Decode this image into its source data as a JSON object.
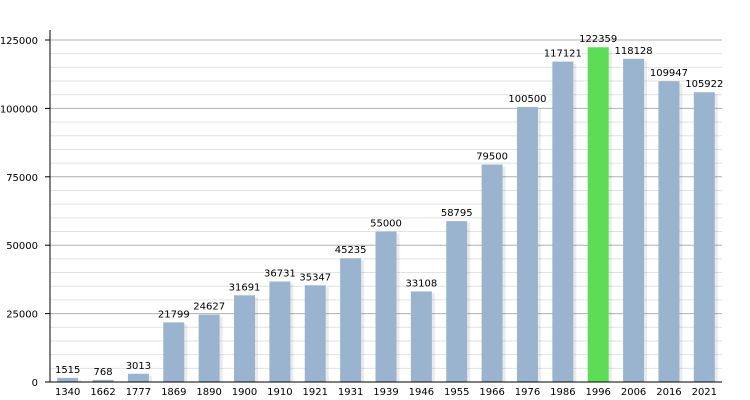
{
  "chart_data": {
    "type": "bar",
    "title": "",
    "xlabel": "",
    "ylabel": "",
    "ylim": [
      0,
      125000
    ],
    "yticks": [
      0,
      25000,
      50000,
      75000,
      100000,
      125000
    ],
    "grid": true,
    "categories": [
      "1340",
      "1662",
      "1777",
      "1869",
      "1890",
      "1900",
      "1910",
      "1921",
      "1931",
      "1939",
      "1946",
      "1955",
      "1966",
      "1976",
      "1986",
      "1996",
      "2006",
      "2016",
      "2021"
    ],
    "values": [
      1515,
      768,
      3013,
      21799,
      24627,
      31691,
      36731,
      35347,
      45235,
      55000,
      33108,
      58795,
      79500,
      100500,
      117121,
      122359,
      118128,
      109947,
      105922
    ],
    "data_labels": [
      "1515",
      "768",
      "3013",
      "21799",
      "24627",
      "31691",
      "36731",
      "35347",
      "45235",
      "55000",
      "33108",
      "58795",
      "79500",
      "100500",
      "117121",
      "122359",
      "118128",
      "109947",
      "105922"
    ],
    "highlight_index": 15,
    "colors": {
      "bar": "#9ab4cf",
      "highlight": "#5ddc55",
      "grid_major": "#b0b0b0",
      "grid_minor": "#e2e2e2",
      "axis": "#000000"
    }
  }
}
